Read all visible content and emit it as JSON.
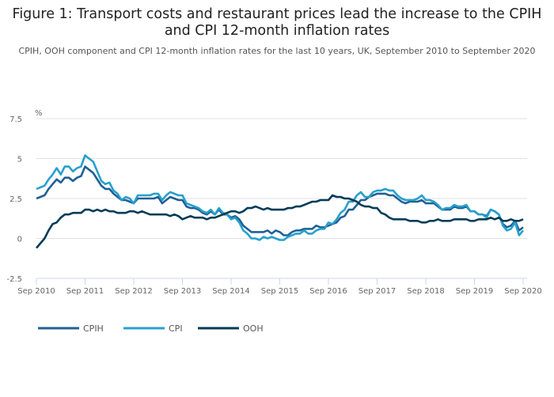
{
  "chart_data": {
    "type": "line",
    "title": "Figure 1: Transport costs and restaurant prices lead the increase to the CPIH and CPI 12-month inflation rates",
    "subtitle": "CPIH, OOH component and CPI 12-month inflation rates for the last 10 years, UK, September 2010 to September 2020",
    "ylabel": "%",
    "xlabel": "",
    "ylim": [
      -2.5,
      7.5
    ],
    "yticks": [
      "7.5",
      "5",
      "2.5",
      "0",
      "-2.5"
    ],
    "ytick_values": [
      7.5,
      5,
      2.5,
      0,
      -2.5
    ],
    "xticks": [
      "Sep 2010",
      "Sep 2011",
      "Sep 2012",
      "Sep 2013",
      "Sep 2014",
      "Sep 2015",
      "Sep 2016",
      "Sep 2017",
      "Sep 2018",
      "Sep 2019",
      "Sep 2020"
    ],
    "x_start": "Sep 2010",
    "x_end": "Sep 2020",
    "frequency": "monthly",
    "grid": true,
    "legend_position": "bottom-left",
    "series": [
      {
        "name": "CPIH",
        "color": "#206095",
        "values": [
          2.5,
          2.6,
          2.7,
          3.1,
          3.4,
          3.7,
          3.5,
          3.8,
          3.8,
          3.6,
          3.8,
          3.9,
          4.5,
          4.3,
          4.1,
          3.7,
          3.3,
          3.1,
          3.1,
          2.8,
          2.6,
          2.4,
          2.4,
          2.3,
          2.2,
          2.5,
          2.5,
          2.5,
          2.5,
          2.5,
          2.6,
          2.2,
          2.4,
          2.6,
          2.5,
          2.4,
          2.4,
          2.0,
          1.9,
          1.9,
          1.8,
          1.6,
          1.5,
          1.7,
          1.5,
          1.8,
          1.5,
          1.5,
          1.3,
          1.4,
          1.2,
          0.8,
          0.6,
          0.4,
          0.4,
          0.4,
          0.4,
          0.5,
          0.3,
          0.5,
          0.4,
          0.2,
          0.2,
          0.4,
          0.5,
          0.5,
          0.6,
          0.6,
          0.6,
          0.8,
          0.7,
          0.7,
          0.8,
          0.9,
          1.0,
          1.3,
          1.4,
          1.8,
          1.8,
          2.1,
          2.4,
          2.4,
          2.6,
          2.7,
          2.8,
          2.8,
          2.8,
          2.7,
          2.7,
          2.5,
          2.3,
          2.2,
          2.3,
          2.3,
          2.3,
          2.4,
          2.2,
          2.2,
          2.2,
          2.0,
          1.8,
          1.8,
          1.8,
          2.0,
          1.9,
          1.9,
          2.0,
          1.7,
          1.7,
          1.5,
          1.5,
          1.4,
          1.8,
          1.7,
          1.5,
          0.9,
          0.7,
          0.8,
          1.1,
          0.5,
          0.7
        ]
      },
      {
        "name": "CPI",
        "color": "#27a0cc",
        "values": [
          3.1,
          3.2,
          3.3,
          3.7,
          4.0,
          4.4,
          4.0,
          4.5,
          4.5,
          4.2,
          4.4,
          4.5,
          5.2,
          5.0,
          4.8,
          4.2,
          3.6,
          3.4,
          3.5,
          3.0,
          2.8,
          2.4,
          2.6,
          2.5,
          2.2,
          2.7,
          2.7,
          2.7,
          2.7,
          2.8,
          2.8,
          2.4,
          2.7,
          2.9,
          2.8,
          2.7,
          2.7,
          2.2,
          2.1,
          2.0,
          1.9,
          1.7,
          1.6,
          1.8,
          1.5,
          1.9,
          1.6,
          1.5,
          1.2,
          1.3,
          1.0,
          0.5,
          0.3,
          0.0,
          0.0,
          -0.1,
          0.1,
          0.0,
          0.1,
          0.0,
          -0.1,
          -0.1,
          0.1,
          0.2,
          0.3,
          0.3,
          0.5,
          0.3,
          0.3,
          0.5,
          0.6,
          0.6,
          1.0,
          0.9,
          1.2,
          1.6,
          1.8,
          2.3,
          2.3,
          2.7,
          2.9,
          2.6,
          2.6,
          2.9,
          3.0,
          3.0,
          3.1,
          3.0,
          3.0,
          2.7,
          2.5,
          2.4,
          2.4,
          2.4,
          2.5,
          2.7,
          2.4,
          2.4,
          2.3,
          2.1,
          1.8,
          1.9,
          1.9,
          2.1,
          2.0,
          2.0,
          2.1,
          1.7,
          1.7,
          1.5,
          1.5,
          1.3,
          1.8,
          1.7,
          1.5,
          0.8,
          0.5,
          0.6,
          1.0,
          0.2,
          0.5
        ]
      },
      {
        "name": "OOH",
        "color": "#003c57",
        "values": [
          -0.6,
          -0.3,
          0.0,
          0.5,
          0.9,
          1.0,
          1.3,
          1.5,
          1.5,
          1.6,
          1.6,
          1.6,
          1.8,
          1.8,
          1.7,
          1.8,
          1.7,
          1.8,
          1.7,
          1.7,
          1.6,
          1.6,
          1.6,
          1.7,
          1.7,
          1.6,
          1.7,
          1.6,
          1.5,
          1.5,
          1.5,
          1.5,
          1.5,
          1.4,
          1.5,
          1.4,
          1.2,
          1.3,
          1.4,
          1.3,
          1.3,
          1.3,
          1.2,
          1.3,
          1.3,
          1.4,
          1.5,
          1.6,
          1.7,
          1.7,
          1.6,
          1.7,
          1.9,
          1.9,
          2.0,
          1.9,
          1.8,
          1.9,
          1.8,
          1.8,
          1.8,
          1.8,
          1.9,
          1.9,
          2.0,
          2.0,
          2.1,
          2.2,
          2.3,
          2.3,
          2.4,
          2.4,
          2.4,
          2.7,
          2.6,
          2.6,
          2.5,
          2.5,
          2.4,
          2.3,
          2.1,
          2.0,
          2.0,
          1.9,
          1.9,
          1.6,
          1.5,
          1.3,
          1.2,
          1.2,
          1.2,
          1.2,
          1.1,
          1.1,
          1.1,
          1.0,
          1.0,
          1.1,
          1.1,
          1.2,
          1.1,
          1.1,
          1.1,
          1.2,
          1.2,
          1.2,
          1.2,
          1.1,
          1.1,
          1.2,
          1.2,
          1.2,
          1.3,
          1.2,
          1.3,
          1.1,
          1.1,
          1.2,
          1.1,
          1.1,
          1.2
        ]
      }
    ]
  }
}
